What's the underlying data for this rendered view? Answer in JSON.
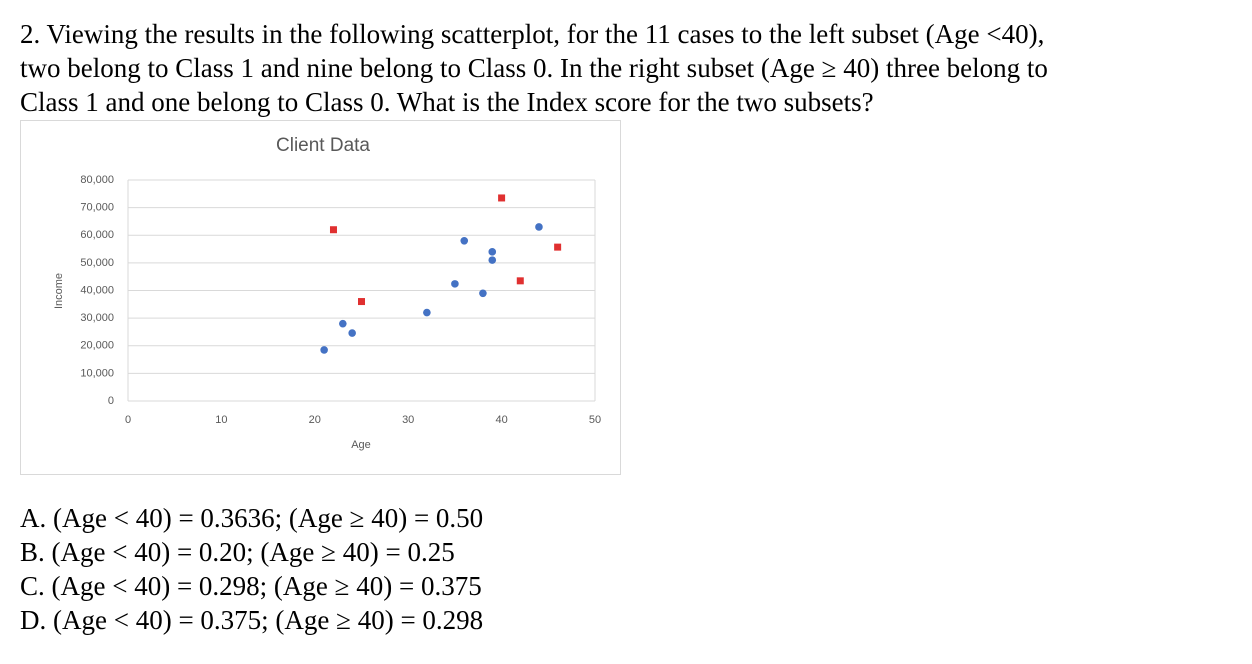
{
  "question_lines": [
    "2. Viewing the results in the following scatterplot, for the 11 cases to the left subset (Age <40),",
    "two belong to Class 1 and nine belong to Class 0. In the right subset (Age ≥ 40) three belong to",
    "Class 1 and one belong to Class 0. What is the Index score for the two subsets?"
  ],
  "chart_data": {
    "type": "scatter",
    "title": "Client Data",
    "x_label": "Age",
    "y_label": "Income",
    "xlim": [
      0,
      50
    ],
    "xticks": [
      0,
      10,
      20,
      30,
      40,
      50
    ],
    "ylim": [
      0,
      80000
    ],
    "yticks": [
      0,
      {
        "value": 10000,
        "label": "10,000"
      },
      {
        "value": 20000,
        "label": "20,000"
      },
      {
        "value": 30000,
        "label": "30,000"
      },
      {
        "value": 40000,
        "label": "40,000"
      },
      {
        "value": 50000,
        "label": "50,000"
      },
      {
        "value": 60000,
        "label": "60,000"
      },
      {
        "value": 70000,
        "label": "70,000"
      },
      {
        "value": 80000,
        "label": "80,000"
      }
    ],
    "grid": true,
    "series": [
      {
        "color": "#4472c4",
        "marker": "circle",
        "x": [
          21,
          23,
          24,
          32,
          35,
          36,
          38,
          39,
          39,
          44
        ],
        "values": [
          18500,
          28000,
          24600,
          32000,
          42400,
          58000,
          39000,
          54000,
          51000,
          63000
        ]
      },
      {
        "color": "#e03030",
        "marker": "square",
        "x": [
          22,
          25,
          40,
          42,
          46
        ],
        "values": [
          62000,
          36000,
          73500,
          43500,
          55700
        ]
      }
    ]
  },
  "options": [
    "A. (Age < 40) = 0.3636; (Age ≥ 40) = 0.50",
    "B. (Age < 40) = 0.20; (Age ≥ 40) = 0.25",
    "C. (Age < 40) = 0.298; (Age ≥ 40) = 0.375",
    "D. (Age < 40) = 0.375; (Age ≥ 40) = 0.298"
  ]
}
